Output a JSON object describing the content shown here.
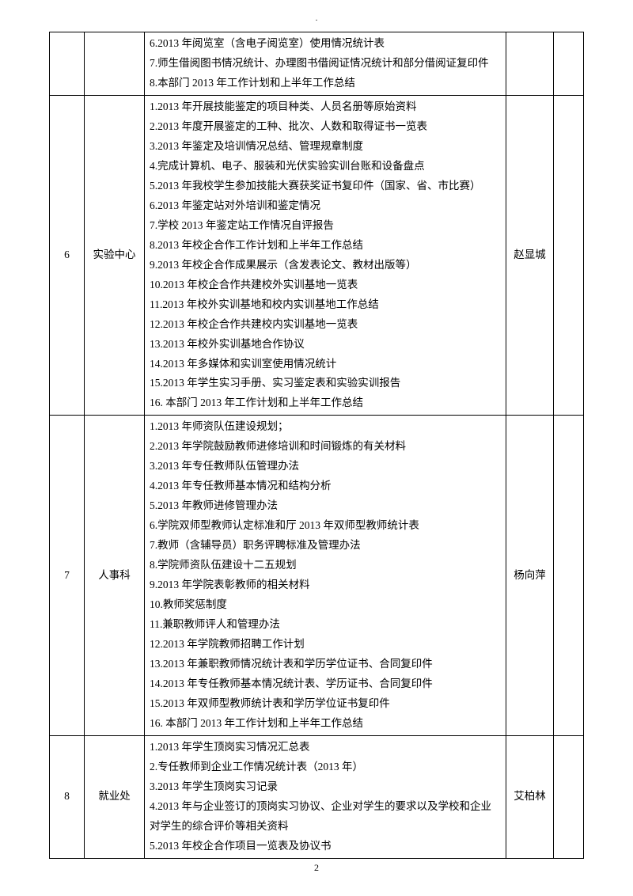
{
  "page_number": "2",
  "top_dot": ".",
  "rows": [
    {
      "num": "",
      "dept": "",
      "person": "",
      "last": "",
      "lines": [
        "6.2013 年阅览室（含电子阅览室）使用情况统计表",
        "7.师生借阅图书情况统计、办理图书借阅证情况统计和部分借阅证复印件",
        "8.本部门 2013 年工作计划和上半年工作总结"
      ]
    },
    {
      "num": "6",
      "dept": "实验中心",
      "person": "赵显城",
      "last": "",
      "lines": [
        "1.2013 年开展技能鉴定的项目种类、人员名册等原始资料",
        "2.2013 年度开展鉴定的工种、批次、人数和取得证书一览表",
        "3.2013 年鉴定及培训情况总结、管理规章制度",
        "4.完成计算机、电子、服装和光伏实验实训台账和设备盘点",
        "5.2013 年我校学生参加技能大赛获奖证书复印件（国家、省、市比赛）",
        "6.2013 年鉴定站对外培训和鉴定情况",
        "7.学校 2013 年鉴定站工作情况自评报告",
        "8.2013 年校企合作工作计划和上半年工作总结",
        "9.2013 年校企合作成果展示（含发表论文、教材出版等）",
        "10.2013 年校企合作共建校外实训基地一览表",
        "11.2013 年校外实训基地和校内实训基地工作总结",
        "12.2013 年校企合作共建校内实训基地一览表",
        "13.2013 年校外实训基地合作协议",
        "14.2013 年多媒体和实训室使用情况统计",
        "15.2013 年学生实习手册、实习鉴定表和实验实训报告",
        "16. 本部门 2013 年工作计划和上半年工作总结"
      ]
    },
    {
      "num": "7",
      "dept": "人事科",
      "person": "杨向萍",
      "last": "",
      "lines": [
        "1.2013 年师资队伍建设规划；",
        "2.2013 年学院鼓励教师进修培训和时间锻炼的有关材料",
        "3.2013 年专任教师队伍管理办法",
        "4.2013 年专任教师基本情况和结构分析",
        "5.2013 年教师进修管理办法",
        "6.学院双师型教师认定标准和厅 2013 年双师型教师统计表",
        "7.教师（含辅导员）职务评聘标准及管理办法",
        "8.学院师资队伍建设十二五规划",
        "9.2013 年学院表彰教师的相关材料",
        "10.教师奖惩制度",
        "11.兼职教师评人和管理办法",
        "12.2013 年学院教师招聘工作计划",
        "13.2013 年兼职教师情况统计表和学历学位证书、合同复印件",
        "14.2013 年专任教师基本情况统计表、学历证书、合同复印件",
        "15.2013 年双师型教师统计表和学历学位证书复印件",
        "16. 本部门 2013 年工作计划和上半年工作总结"
      ]
    },
    {
      "num": "8",
      "dept": "就业处",
      "person": "艾柏林",
      "last": "",
      "lines": [
        "1.2013 年学生顶岗实习情况汇总表",
        "2.专任教师到企业工作情况统计表（2013 年）",
        "3.2013 年学生顶岗实习记录",
        "4.2013 年与企业签订的顶岗实习协议、企业对学生的要求以及学校和企业对学生的综合评价等相关资料",
        "5.2013 年校企合作项目一览表及协议书"
      ]
    }
  ]
}
